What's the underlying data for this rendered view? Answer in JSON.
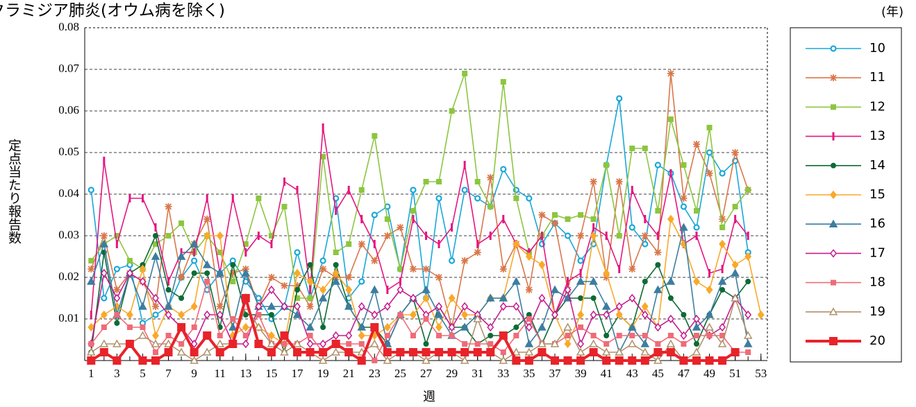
{
  "chart_data": {
    "type": "line",
    "title": "クラミジア肺炎(オウム病を除く)",
    "unit_label": "(年)",
    "ylabel": "定点当たり報告数",
    "xlabel": "週",
    "x": [
      1,
      2,
      3,
      4,
      5,
      6,
      7,
      8,
      9,
      10,
      11,
      12,
      13,
      14,
      15,
      16,
      17,
      18,
      19,
      20,
      21,
      22,
      23,
      24,
      25,
      26,
      27,
      28,
      29,
      30,
      31,
      32,
      33,
      34,
      35,
      36,
      37,
      38,
      39,
      40,
      41,
      42,
      43,
      44,
      45,
      46,
      47,
      48,
      49,
      50,
      51,
      52,
      53
    ],
    "xlim": [
      0.5,
      53.5
    ],
    "xticks": [
      1,
      3,
      5,
      7,
      9,
      11,
      13,
      15,
      17,
      19,
      21,
      23,
      25,
      27,
      29,
      31,
      33,
      35,
      37,
      39,
      41,
      43,
      45,
      47,
      49,
      51,
      53
    ],
    "ylim": [
      0,
      0.08
    ],
    "yticks": [
      0.01,
      0.02,
      0.03,
      0.04,
      0.05,
      0.06,
      0.07,
      0.08
    ],
    "grid": true,
    "series": [
      {
        "name": "10",
        "color": "#1aa7d8",
        "marker": "circle-open",
        "values": [
          0.041,
          0.015,
          0.022,
          0.023,
          0.009,
          0.011,
          0.013,
          0.02,
          0.024,
          0.017,
          0.021,
          0.024,
          0.019,
          0.015,
          0.01,
          0.013,
          0.026,
          0.015,
          0.024,
          0.039,
          0.015,
          0.019,
          0.035,
          0.037,
          0.022,
          0.041,
          0.015,
          0.039,
          0.024,
          0.041,
          0.039,
          0.037,
          0.046,
          0.041,
          0.039,
          0.028,
          0.033,
          0.03,
          0.024,
          0.028,
          0.047,
          0.063,
          0.032,
          0.028,
          0.047,
          0.045,
          0.037,
          0.032,
          0.05,
          0.045,
          0.048,
          0.026,
          null
        ]
      },
      {
        "name": "11",
        "color": "#d9774a",
        "marker": "star",
        "values": [
          0.022,
          0.03,
          0.017,
          0.021,
          0.019,
          0.013,
          0.037,
          0.02,
          0.028,
          0.034,
          0.013,
          0.021,
          0.022,
          0.013,
          0.02,
          0.018,
          0.018,
          0.013,
          0.022,
          0.02,
          0.02,
          0.028,
          0.024,
          0.03,
          0.032,
          0.022,
          0.022,
          0.02,
          0.008,
          0.024,
          0.026,
          0.044,
          0.022,
          0.028,
          0.017,
          0.035,
          0.033,
          0.017,
          0.03,
          0.043,
          0.02,
          0.043,
          0.022,
          0.03,
          0.026,
          0.069,
          0.039,
          0.052,
          0.045,
          0.034,
          0.05,
          0.041,
          null
        ]
      },
      {
        "name": "12",
        "color": "#8cc63f",
        "marker": "square",
        "values": [
          0.024,
          0.028,
          0.03,
          0.024,
          0.022,
          0.028,
          0.03,
          0.033,
          0.026,
          0.03,
          0.026,
          0.019,
          0.028,
          0.039,
          0.03,
          0.037,
          0.015,
          0.015,
          0.049,
          0.026,
          0.028,
          0.041,
          0.054,
          0.034,
          0.022,
          0.036,
          0.043,
          0.043,
          0.06,
          0.069,
          0.043,
          0.037,
          0.067,
          0.039,
          0.026,
          0.03,
          0.035,
          0.034,
          0.035,
          0.034,
          0.047,
          0.03,
          0.051,
          0.051,
          0.036,
          0.058,
          0.047,
          0.036,
          0.056,
          0.032,
          0.037,
          0.041,
          null
        ]
      },
      {
        "name": "13",
        "color": "#e5157f",
        "marker": "bar",
        "values": [
          0.011,
          0.048,
          0.028,
          0.039,
          0.039,
          0.032,
          0.019,
          0.026,
          0.026,
          0.039,
          0.021,
          0.039,
          0.026,
          0.03,
          0.028,
          0.043,
          0.041,
          0.017,
          0.056,
          0.036,
          0.041,
          0.034,
          0.028,
          0.017,
          0.019,
          0.034,
          0.03,
          0.028,
          0.032,
          0.047,
          0.028,
          0.03,
          0.034,
          0.028,
          0.026,
          0.03,
          0.011,
          0.019,
          0.021,
          0.032,
          0.03,
          0.022,
          0.041,
          0.034,
          0.03,
          0.045,
          0.028,
          0.03,
          0.021,
          0.022,
          0.034,
          0.03,
          null
        ]
      },
      {
        "name": "14",
        "color": "#0c6b35",
        "marker": "dot",
        "values": [
          0.002,
          0.026,
          0.009,
          0.021,
          0.023,
          0.03,
          0.017,
          0.015,
          0.021,
          0.021,
          0.008,
          0.023,
          0.011,
          0.011,
          0.011,
          0.002,
          0.017,
          0.023,
          0.008,
          0.023,
          0.013,
          0.008,
          0.008,
          0.004,
          0.011,
          0.015,
          0.004,
          0.013,
          0.008,
          0.008,
          0.004,
          0.006,
          0.006,
          0.008,
          0.011,
          0.004,
          0.011,
          0.015,
          0.015,
          0.015,
          0.006,
          0.011,
          0.008,
          0.019,
          0.023,
          0.015,
          0.011,
          0.004,
          0.011,
          0.017,
          0.015,
          0.019,
          null
        ]
      },
      {
        "name": "15",
        "color": "#f9a92a",
        "marker": "diamond",
        "values": [
          0.008,
          0.011,
          0.013,
          0.011,
          0.022,
          0.006,
          0.013,
          0.011,
          0.013,
          0.03,
          0.03,
          0.006,
          0.008,
          0.008,
          0.006,
          0.004,
          0.021,
          0.019,
          0.017,
          0.021,
          0.017,
          0.006,
          0.006,
          0.008,
          0.011,
          0.011,
          0.015,
          0.008,
          0.015,
          0.011,
          0.011,
          0.015,
          0.015,
          0.028,
          0.025,
          0.023,
          0.011,
          0.004,
          0.011,
          0.03,
          0.021,
          0.011,
          0.008,
          0.013,
          0.008,
          0.034,
          0.028,
          0.019,
          0.017,
          0.028,
          0.023,
          0.025,
          0.011
        ]
      },
      {
        "name": "16",
        "color": "#3c7da0",
        "marker": "triangle",
        "values": [
          0.019,
          0.028,
          0.011,
          0.021,
          0.013,
          0.025,
          0.013,
          0.025,
          0.028,
          0.023,
          0.021,
          0.008,
          0.021,
          0.013,
          0.013,
          0.013,
          0.011,
          0.008,
          0.015,
          0.019,
          0.013,
          0.008,
          0.017,
          0.004,
          0.011,
          0.015,
          0.017,
          0.011,
          0.006,
          0.008,
          0.011,
          0.015,
          0.015,
          0.019,
          0.004,
          0.008,
          0.017,
          0.015,
          0.019,
          0.019,
          0.013,
          0.002,
          0.008,
          0.004,
          0.017,
          0.019,
          0.032,
          0.008,
          0.011,
          0.019,
          0.021,
          0.004,
          null
        ]
      },
      {
        "name": "17",
        "color": "#c71c8e",
        "marker": "diamond-open",
        "values": [
          0.004,
          0.021,
          0.015,
          0.021,
          0.019,
          0.015,
          0.011,
          0.008,
          0.004,
          0.011,
          0.011,
          0.004,
          0.004,
          0.013,
          0.017,
          0.013,
          0.013,
          0.004,
          0.004,
          0.006,
          0.006,
          0.013,
          0.011,
          0.013,
          0.017,
          0.015,
          0.011,
          0.013,
          0.008,
          0.013,
          0.011,
          0.008,
          0.013,
          0.013,
          0.008,
          0.015,
          0.011,
          0.017,
          0.004,
          0.011,
          0.011,
          0.013,
          0.015,
          0.011,
          0.008,
          0.01,
          0.006,
          0.01,
          0.006,
          0.008,
          0.015,
          0.011,
          null
        ]
      },
      {
        "name": "18",
        "color": "#ef6b78",
        "marker": "square",
        "values": [
          0.004,
          0.008,
          0.011,
          0.008,
          0.008,
          0.002,
          0.006,
          0.004,
          0.008,
          0.019,
          0.006,
          0.01,
          0.006,
          0.011,
          0.004,
          0.004,
          0.004,
          0.006,
          0.002,
          0.004,
          0.004,
          0.004,
          0,
          0.006,
          0.011,
          0.006,
          0.01,
          0.006,
          0.006,
          0.004,
          0.004,
          0.004,
          0.002,
          0.006,
          0.01,
          0.004,
          0.004,
          0.006,
          0.008,
          0.006,
          0.004,
          0.006,
          0.006,
          0.006,
          0.004,
          0.006,
          0.004,
          0.006,
          0.006,
          0.006,
          0.002,
          0.002,
          null
        ]
      },
      {
        "name": "19",
        "color": "#b0916a",
        "marker": "triangle-open",
        "values": [
          0.002,
          0.004,
          0.004,
          0.004,
          0.006,
          0.004,
          0.004,
          0.002,
          0,
          0.002,
          0.004,
          0.004,
          0.013,
          0.008,
          0.004,
          0.002,
          0.004,
          0.002,
          0,
          0.002,
          0.002,
          0.002,
          0.004,
          0,
          0.002,
          0.002,
          0,
          0.002,
          0.002,
          0,
          0.01,
          0.002,
          0,
          0.002,
          0.002,
          0.004,
          0.004,
          0.008,
          0.002,
          0.004,
          0.002,
          0.002,
          0.004,
          0.002,
          0,
          0.004,
          0,
          0.002,
          0.008,
          0.004,
          0.015,
          0.006,
          null
        ]
      },
      {
        "name": "20",
        "color": "#e8232a",
        "marker": "square-big",
        "values": [
          0,
          0.002,
          0,
          0.004,
          0,
          0,
          0.002,
          0.008,
          0.002,
          0.006,
          0.002,
          0.004,
          0.015,
          0.004,
          0.002,
          0.006,
          0.002,
          0.002,
          0.002,
          0.004,
          0.002,
          0,
          0.008,
          0.002,
          0.002,
          0.002,
          0.002,
          0.002,
          0.002,
          0.002,
          0.002,
          0.002,
          0.006,
          0,
          0,
          0.002,
          0,
          0,
          0,
          0.002,
          0,
          0,
          0,
          0,
          0.002,
          0.002,
          0,
          0,
          0,
          0,
          0.002,
          null,
          null
        ]
      }
    ]
  }
}
